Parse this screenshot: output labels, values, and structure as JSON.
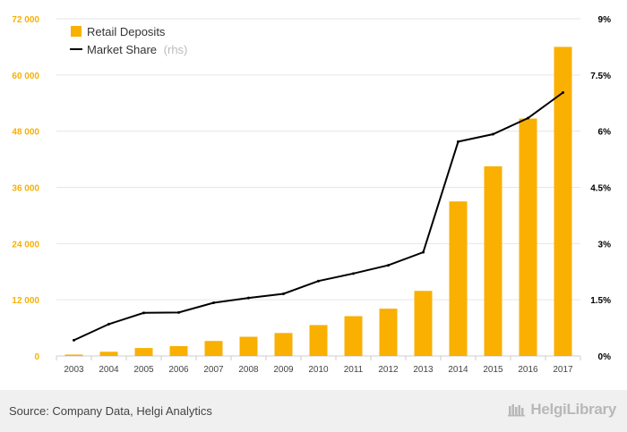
{
  "chart_data": {
    "type": "bar",
    "categories": [
      "2003",
      "2004",
      "2005",
      "2006",
      "2007",
      "2008",
      "2009",
      "2010",
      "2011",
      "2012",
      "2013",
      "2014",
      "2015",
      "2016",
      "2017"
    ],
    "series": [
      {
        "name": "Retail Deposits",
        "type": "bar",
        "axis": "left",
        "color": "#F9B000",
        "values": [
          300,
          900,
          1700,
          2100,
          3200,
          4100,
          4900,
          6600,
          8500,
          10100,
          13900,
          33000,
          40500,
          50700,
          66000
        ]
      },
      {
        "name": "Market Share",
        "type": "line",
        "axis": "right",
        "color": "#000000",
        "values": [
          0.42,
          0.85,
          1.15,
          1.16,
          1.42,
          1.55,
          1.66,
          2.0,
          2.2,
          2.42,
          2.77,
          5.72,
          5.92,
          6.35,
          7.03
        ]
      }
    ],
    "legend": {
      "position": "top-left",
      "items": [
        {
          "label": "Retail Deposits",
          "suffix": ""
        },
        {
          "label": "Market Share",
          "suffix": "(rhs)"
        }
      ]
    },
    "y_left": {
      "range": [
        0,
        72000
      ],
      "ticks": [
        0,
        12000,
        24000,
        36000,
        48000,
        60000,
        72000
      ],
      "tick_labels": [
        "0",
        "12 000",
        "24 000",
        "36 000",
        "48 000",
        "60 000",
        "72 000"
      ],
      "label_color": "#F9B000"
    },
    "y_right": {
      "range": [
        0,
        9
      ],
      "ticks": [
        0,
        1.5,
        3,
        4.5,
        6,
        7.5,
        9
      ],
      "tick_labels": [
        "0%",
        "1.5%",
        "3%",
        "4.5%",
        "6%",
        "7.5%",
        "9%"
      ],
      "label_color": "#000000"
    },
    "grid": true,
    "title": "",
    "xlabel": "",
    "ylabel": ""
  },
  "footer": {
    "source": "Source: Company Data, Helgi Analytics",
    "brand": "HelgiLibrary",
    "brand_icon": "library-books-icon"
  }
}
